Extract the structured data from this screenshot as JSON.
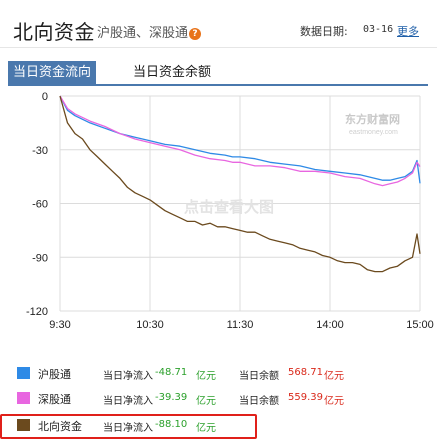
{
  "header": {
    "title": "北向资金",
    "subtitle": "沪股通、深股通",
    "help_mark": "?",
    "date_label": "数据日期:",
    "date_value": "03-16",
    "more_link": "更多"
  },
  "tabs": [
    {
      "label": "当日资金流向",
      "active": true
    },
    {
      "label": "当日资金余额",
      "active": false
    }
  ],
  "watermark": {
    "brand": "东方财富网",
    "site": "eastmoney.com",
    "center_text": "点击查看大图"
  },
  "legend": [
    {
      "name": "沪股通",
      "flow_label": "当日净流入",
      "flow_value": "-48.71",
      "flow_unit": "亿元",
      "balance_label": "当日余额",
      "balance_value": "568.71",
      "balance_unit": "亿元",
      "color": "#2e8ae6"
    },
    {
      "name": "深股通",
      "flow_label": "当日净流入",
      "flow_value": "-39.39",
      "flow_unit": "亿元",
      "balance_label": "当日余额",
      "balance_value": "559.39",
      "balance_unit": "亿元",
      "color": "#e866e0"
    },
    {
      "name": "北向资金",
      "flow_label": "当日净流入",
      "flow_value": "-88.10",
      "flow_unit": "亿元",
      "color": "#6b4a1e"
    }
  ],
  "chart_data": {
    "type": "line",
    "x_ticks": [
      "9:30",
      "10:30",
      "11:30",
      "14:00",
      "15:00"
    ],
    "y_ticks": [
      0,
      -30,
      -60,
      -90,
      -120
    ],
    "ylim": [
      -120,
      0
    ],
    "xlim": [
      0,
      240
    ],
    "grid": true,
    "series": [
      {
        "name": "沪股通",
        "color": "#2e8ae6",
        "points": [
          [
            0,
            0
          ],
          [
            5,
            -8
          ],
          [
            10,
            -11
          ],
          [
            20,
            -15
          ],
          [
            30,
            -18
          ],
          [
            40,
            -21
          ],
          [
            50,
            -23
          ],
          [
            60,
            -25
          ],
          [
            70,
            -27
          ],
          [
            80,
            -28
          ],
          [
            90,
            -30
          ],
          [
            100,
            -32
          ],
          [
            110,
            -33
          ],
          [
            115,
            -34
          ],
          [
            120,
            -34
          ],
          [
            130,
            -35
          ],
          [
            140,
            -37
          ],
          [
            150,
            -38
          ],
          [
            160,
            -39
          ],
          [
            170,
            -41
          ],
          [
            180,
            -42
          ],
          [
            190,
            -43
          ],
          [
            200,
            -44
          ],
          [
            210,
            -46
          ],
          [
            215,
            -47
          ],
          [
            220,
            -47
          ],
          [
            225,
            -46
          ],
          [
            230,
            -45
          ],
          [
            235,
            -42
          ],
          [
            238,
            -36
          ],
          [
            240,
            -48.71
          ]
        ]
      },
      {
        "name": "深股通",
        "color": "#e866e0",
        "points": [
          [
            0,
            0
          ],
          [
            5,
            -7
          ],
          [
            10,
            -10
          ],
          [
            20,
            -14
          ],
          [
            30,
            -17
          ],
          [
            40,
            -21
          ],
          [
            50,
            -24
          ],
          [
            60,
            -26
          ],
          [
            70,
            -28
          ],
          [
            80,
            -30
          ],
          [
            90,
            -33
          ],
          [
            100,
            -35
          ],
          [
            110,
            -36
          ],
          [
            115,
            -37
          ],
          [
            120,
            -37
          ],
          [
            130,
            -39
          ],
          [
            140,
            -39
          ],
          [
            150,
            -40
          ],
          [
            160,
            -42
          ],
          [
            170,
            -42
          ],
          [
            180,
            -43
          ],
          [
            190,
            -45
          ],
          [
            200,
            -46
          ],
          [
            210,
            -49
          ],
          [
            215,
            -50
          ],
          [
            220,
            -49
          ],
          [
            225,
            -48
          ],
          [
            230,
            -46
          ],
          [
            235,
            -43
          ],
          [
            238,
            -37
          ],
          [
            240,
            -39.39
          ]
        ]
      },
      {
        "name": "北向资金",
        "color": "#6b4a1e",
        "points": [
          [
            0,
            0
          ],
          [
            5,
            -15
          ],
          [
            10,
            -21
          ],
          [
            15,
            -24
          ],
          [
            20,
            -30
          ],
          [
            25,
            -34
          ],
          [
            30,
            -38
          ],
          [
            35,
            -42
          ],
          [
            40,
            -46
          ],
          [
            45,
            -51
          ],
          [
            50,
            -54
          ],
          [
            55,
            -56
          ],
          [
            60,
            -58
          ],
          [
            65,
            -61
          ],
          [
            70,
            -64
          ],
          [
            75,
            -66
          ],
          [
            80,
            -68
          ],
          [
            85,
            -70
          ],
          [
            90,
            -70
          ],
          [
            95,
            -72
          ],
          [
            100,
            -71
          ],
          [
            105,
            -73
          ],
          [
            110,
            -73
          ],
          [
            115,
            -74
          ],
          [
            120,
            -75
          ],
          [
            125,
            -76
          ],
          [
            130,
            -76
          ],
          [
            135,
            -78
          ],
          [
            140,
            -80
          ],
          [
            145,
            -81
          ],
          [
            150,
            -82
          ],
          [
            155,
            -83
          ],
          [
            160,
            -85
          ],
          [
            165,
            -86
          ],
          [
            170,
            -87
          ],
          [
            175,
            -89
          ],
          [
            180,
            -90
          ],
          [
            185,
            -92
          ],
          [
            190,
            -93
          ],
          [
            195,
            -93
          ],
          [
            200,
            -94
          ],
          [
            205,
            -97
          ],
          [
            210,
            -98
          ],
          [
            215,
            -98
          ],
          [
            220,
            -96
          ],
          [
            225,
            -95
          ],
          [
            230,
            -92
          ],
          [
            235,
            -90
          ],
          [
            238,
            -77
          ],
          [
            240,
            -88.1
          ]
        ]
      }
    ]
  }
}
